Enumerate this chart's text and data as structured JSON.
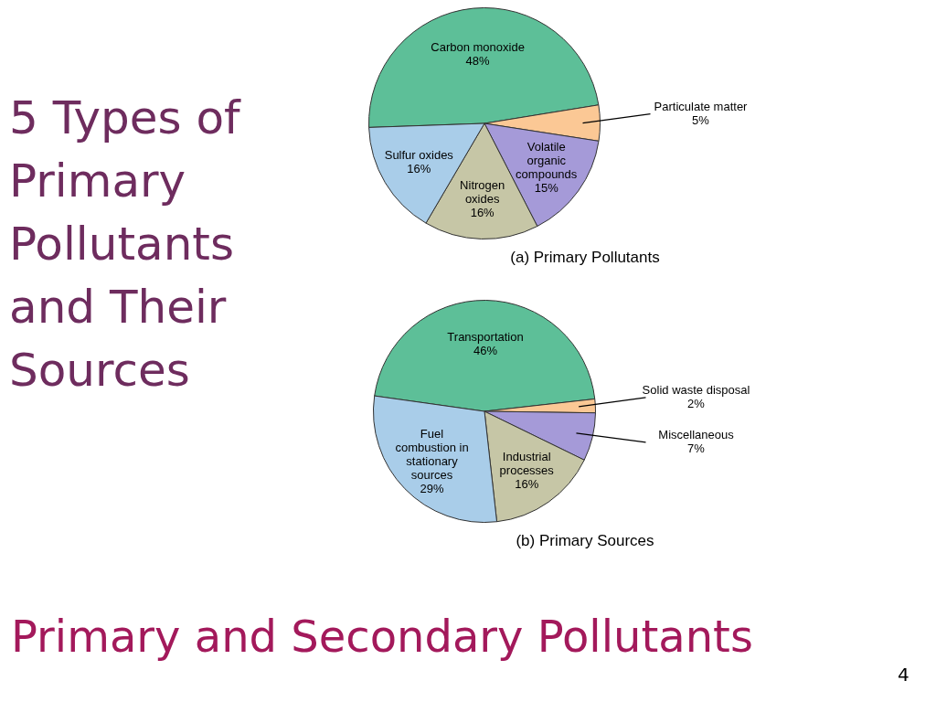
{
  "chart_data": [
    {
      "type": "pie",
      "title": "(a) Primary Pollutants",
      "annotations": [
        "5 Types of Primary Pollutants and Their Sources",
        "Primary and Secondary Pollutants",
        "4"
      ],
      "categories": [
        "Carbon monoxide",
        "Particulate matter",
        "Volatile organic compounds",
        "Nitrogen oxides",
        "Sulfur oxides"
      ],
      "values": [
        48,
        5,
        15,
        16,
        16
      ],
      "value_labels": [
        "48%",
        "5%",
        "15%",
        "16%",
        "16%"
      ],
      "colors": [
        "#5dbf98",
        "#fbc895",
        "#a59ad8",
        "#c6c6a6",
        "#a9cde9"
      ]
    },
    {
      "type": "pie",
      "title": "(b) Primary Sources",
      "categories": [
        "Transportation",
        "Solid waste disposal",
        "Miscellaneous",
        "Industrial processes",
        "Fuel combustion in stationary sources"
      ],
      "values": [
        46,
        2,
        7,
        16,
        29
      ],
      "value_labels": [
        "46%",
        "2%",
        "7%",
        "16%",
        "29%"
      ],
      "colors": [
        "#5dbf98",
        "#fbc895",
        "#a59ad8",
        "#c6c6a6",
        "#a9cde9"
      ]
    }
  ]
}
